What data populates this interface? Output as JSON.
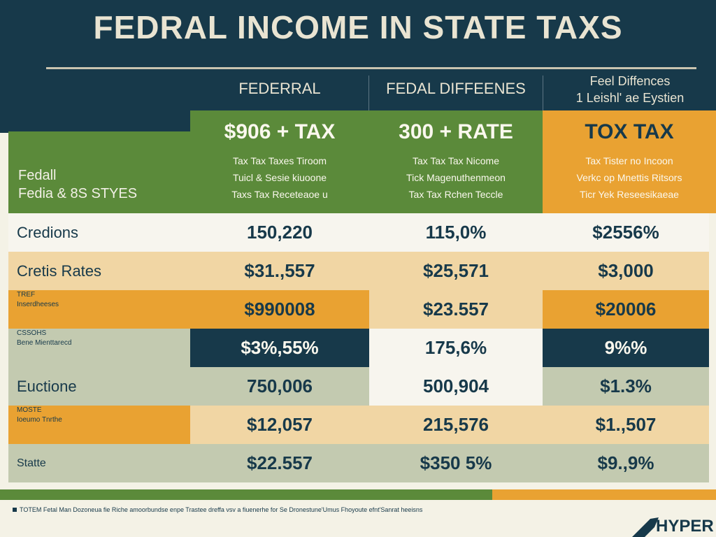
{
  "title": "FEDRAL INCOME IN STATE  TAXS",
  "columns": {
    "col1": "FEDERRAL",
    "col2": "FEDAL DIFFEENES",
    "col3_line1": "Feel Diffences",
    "col3_line2": "1 Leishl' ae Eystien"
  },
  "label_card": {
    "line1": "Fedall",
    "line2": "Fedia & 8S STYES"
  },
  "plans": [
    {
      "title": "$906 + TAX",
      "line1": "Tax Tax Taxes Tiroom",
      "line2": "Tuicl & Sesie kiuoone",
      "line3": "Taxs Tax Receteaoe u",
      "color": "#5b8a3a"
    },
    {
      "title": "300 + RATE",
      "line1": "Tax Tax Tax Nicome",
      "line2": "Tick Magenuthenmeon",
      "line3": "Tax Tax Rchen Teccle",
      "color": "#5b8a3a"
    },
    {
      "title": "TOX TAX",
      "line1": "Tax Tister no Incoon",
      "line2": "Verkc op Mnettis Ritsors",
      "line3": "Ticr Yek Reseesikaeae",
      "color": "#e9a232"
    }
  ],
  "rows": [
    {
      "label": "Credions",
      "label_style": "big",
      "v1": "150,220",
      "v2": "115,0%",
      "v3": "$2556%",
      "bg": [
        "#f7f5ee",
        "#f7f5ee",
        "#f7f5ee",
        "#f7f5ee"
      ],
      "fg": "#17394a"
    },
    {
      "label": "Cretis Rates",
      "label_style": "big",
      "v1": "$31.,557",
      "v2": "$25,571",
      "v3": "$3,000",
      "bg": [
        "#f1d6a4",
        "#f1d6a4",
        "#f1d6a4",
        "#f1d6a4"
      ],
      "fg": "#17394a"
    },
    {
      "label": "TREF",
      "label2": "Inserdheeses",
      "label_style": "small",
      "v1": "$990008",
      "v2": "$23.557",
      "v3": "$20006",
      "bg": [
        "#e9a232",
        "#e9a232",
        "#f1d6a4",
        "#e9a232"
      ],
      "fg": "#17394a",
      "fg_on_dark": "#fbf8ee"
    },
    {
      "label": "CSSOHS",
      "label2": "Bene Mienttarecd",
      "label_style": "small",
      "v1": "$3%,55%",
      "v2": "175,6%",
      "v3": "9%%",
      "bg": [
        "#c3cab0",
        "#17394a",
        "#f7f5ee",
        "#17394a"
      ],
      "fg": "#17394a",
      "fg_on_dark": "#fbf8ee"
    },
    {
      "label": "Euctione",
      "label_style": "big",
      "v1": "750,006",
      "v2": "500,904",
      "v3": "$1.3%",
      "bg": [
        "#c3cab0",
        "#c3cab0",
        "#f7f5ee",
        "#c3cab0"
      ],
      "fg": "#17394a"
    },
    {
      "label": "MOSTE",
      "label2": "Ioeumo Tnrthe",
      "label_style": "small",
      "v1": "$12,057",
      "v2": "215,576",
      "v3": "$1.,507",
      "bg": [
        "#e9a232",
        "#f1d6a4",
        "#f1d6a4",
        "#f1d6a4"
      ],
      "fg": "#17394a"
    },
    {
      "label": "Statte",
      "label_style": "mid",
      "v1": "$22.557",
      "v2": "$350 5%",
      "v3": "$9.,9%",
      "bg": [
        "#c3cab0",
        "#c3cab0",
        "#c3cab0",
        "#c3cab0"
      ],
      "fg": "#17394a"
    }
  ],
  "footer": {
    "note": "TOTEM Fetal Man Dozoneua fie Riche amoorbundse enpe Trastee dreffa vsv a fiuenerhe for Se Dronestune'Umus Fhoyoute efnt'Sanrat heeisns"
  },
  "brand": "HYPER",
  "colors": {
    "navy": "#17394a",
    "green": "#5b8a3a",
    "orange": "#e9a232",
    "sand": "#f1d6a4",
    "sage": "#c3cab0",
    "cream": "#f7f5ee"
  }
}
